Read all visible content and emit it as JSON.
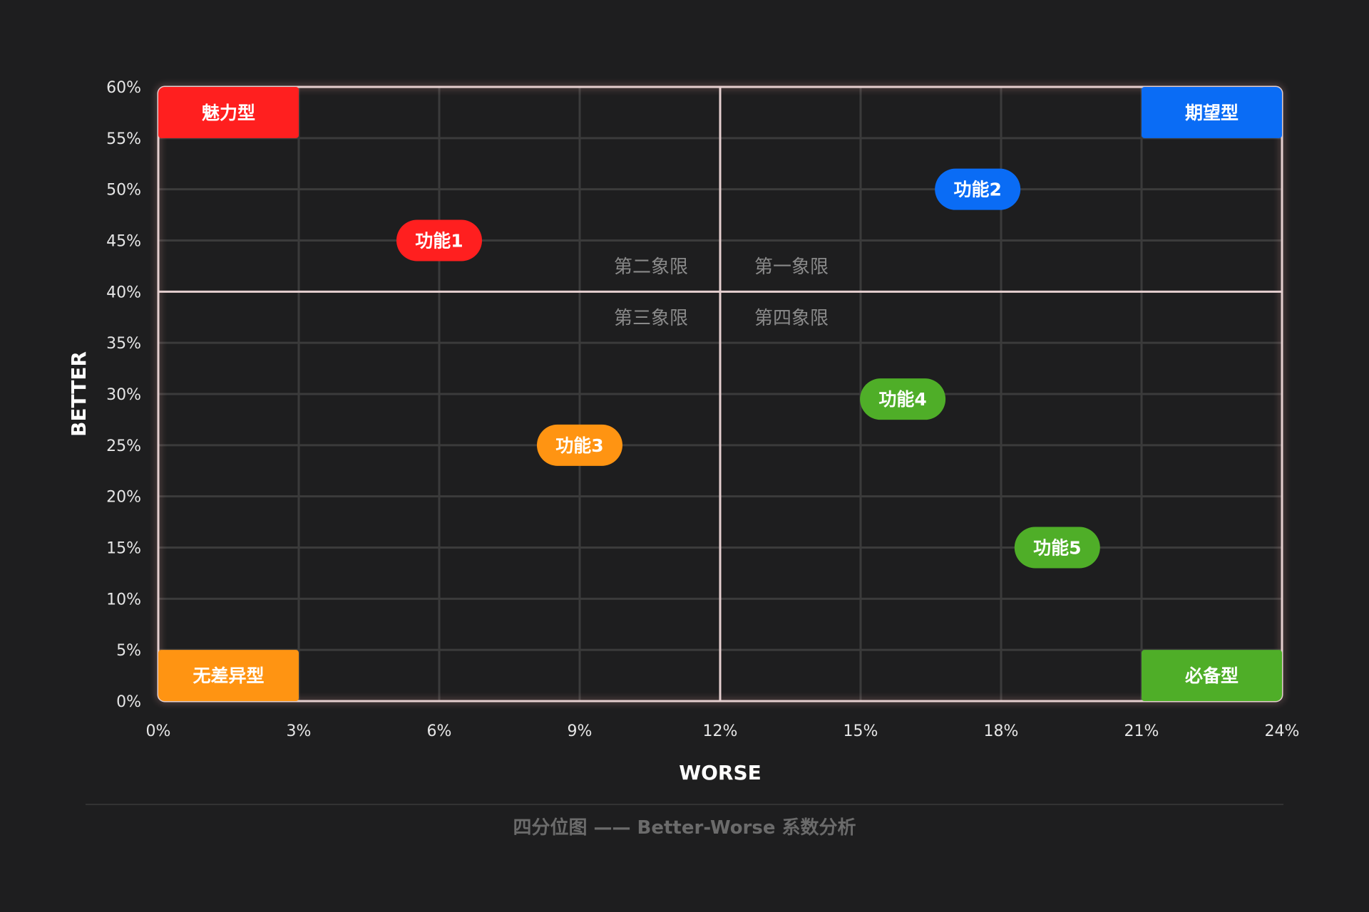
{
  "chart_data": {
    "type": "scatter",
    "xlabel": "WORSE",
    "ylabel": "BETTER",
    "xlim": [
      0,
      24
    ],
    "ylim": [
      0,
      60
    ],
    "x_ticks": [
      0,
      3,
      6,
      9,
      12,
      15,
      18,
      21,
      24
    ],
    "y_ticks": [
      0,
      5,
      10,
      15,
      20,
      25,
      30,
      35,
      40,
      45,
      50,
      55,
      60
    ],
    "x_tick_labels": [
      "0%",
      "3%",
      "6%",
      "9%",
      "12%",
      "15%",
      "18%",
      "21%",
      "24%"
    ],
    "y_tick_labels": [
      "0%",
      "5%",
      "10%",
      "15%",
      "20%",
      "25%",
      "30%",
      "35%",
      "40%",
      "45%",
      "50%",
      "55%",
      "60%"
    ],
    "grid": true,
    "divider": {
      "x": 12,
      "y": 40
    },
    "quadrant_labels": {
      "q1": "第一象限",
      "q2": "第二象限",
      "q3": "第三象限",
      "q4": "第四象限"
    },
    "corner_labels": {
      "top_left": {
        "text": "魅力型",
        "color": "#ff1f1f"
      },
      "top_right": {
        "text": "期望型",
        "color": "#0a6cf5"
      },
      "bottom_left": {
        "text": "无差异型",
        "color": "#ff9412"
      },
      "bottom_right": {
        "text": "必备型",
        "color": "#4fae28"
      }
    },
    "points": [
      {
        "label": "功能1",
        "x": 6,
        "y": 45,
        "color": "#ff1f1f"
      },
      {
        "label": "功能2",
        "x": 17.5,
        "y": 50,
        "color": "#0a6cf5"
      },
      {
        "label": "功能3",
        "x": 9,
        "y": 25,
        "color": "#ff9412"
      },
      {
        "label": "功能4",
        "x": 15.9,
        "y": 29.5,
        "color": "#4fae28"
      },
      {
        "label": "功能5",
        "x": 19.2,
        "y": 15,
        "color": "#4fae28"
      }
    ],
    "caption": "四分位图 —— Better-Worse 系数分析"
  }
}
